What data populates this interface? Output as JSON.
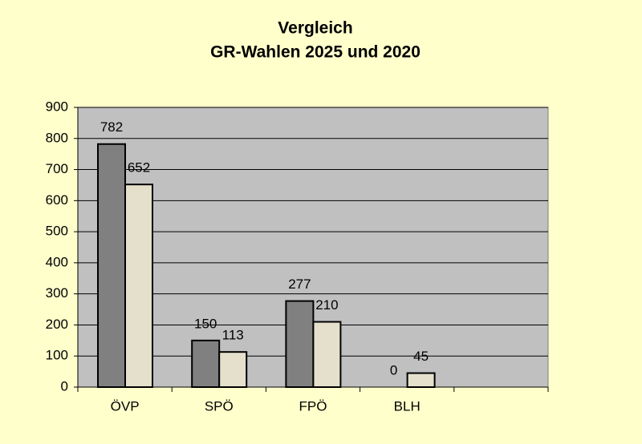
{
  "chart_data": {
    "type": "bar",
    "title": "Vergleich",
    "subtitle": "GR-Wahlen 2025 und 2020",
    "categories": [
      "ÖVP",
      "SPÖ",
      "FPÖ",
      "BLH",
      null
    ],
    "series": [
      {
        "color": "#808080",
        "values": [
          782,
          150,
          277,
          0,
          null
        ]
      },
      {
        "color": "#e4e0cc",
        "values": [
          652,
          113,
          210,
          45,
          null
        ]
      }
    ],
    "ylim": [
      0,
      900
    ],
    "yticks": [
      0,
      100,
      200,
      300,
      400,
      500,
      600,
      700,
      800,
      900
    ],
    "grid": true
  }
}
